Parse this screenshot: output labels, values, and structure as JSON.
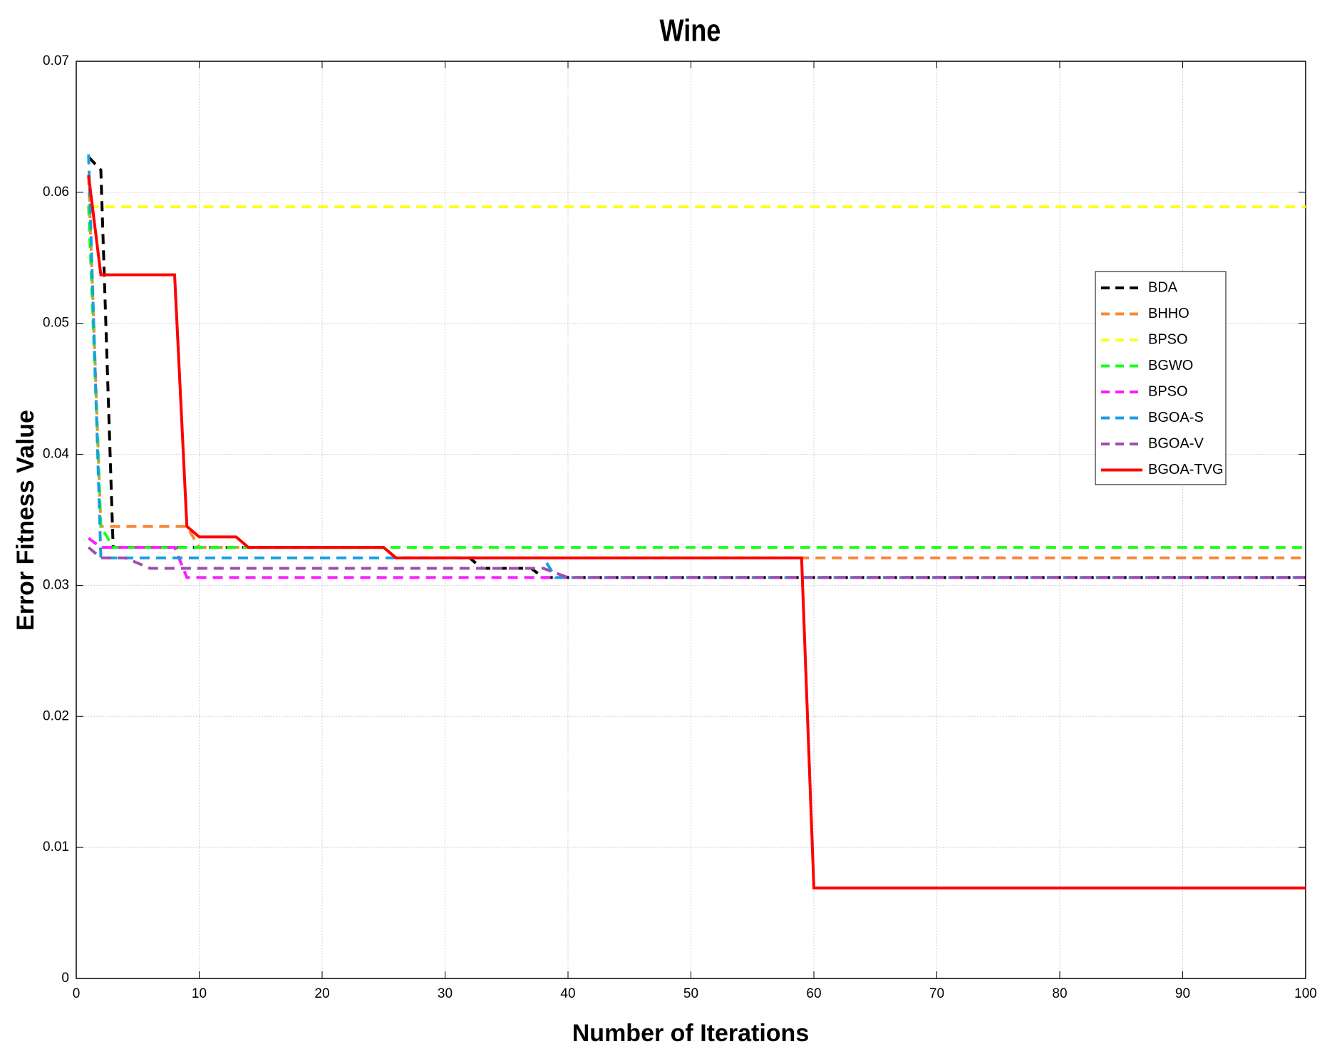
{
  "chart_data": {
    "type": "line",
    "title": "Wine",
    "x_label": "Number of Iterations",
    "y_label": "Error Fitness Value",
    "xlim": [
      0,
      100
    ],
    "xticks": [
      0,
      10,
      20,
      30,
      40,
      50,
      60,
      70,
      80,
      90,
      100
    ],
    "ylim": [
      0,
      0.07
    ],
    "yticks": [
      0,
      0.01,
      0.02,
      0.03,
      0.04,
      0.05,
      0.06,
      0.07
    ],
    "grid": true,
    "legend": "right",
    "series": [
      {
        "name": "BDA",
        "color": "#000000",
        "style": "dashed",
        "x": [
          1,
          2,
          3,
          25,
          26,
          32,
          33,
          37,
          38,
          100
        ],
        "values": [
          0.0627,
          0.0617,
          0.0329,
          0.0329,
          0.0321,
          0.0321,
          0.0313,
          0.0313,
          0.0306,
          0.0306
        ]
      },
      {
        "name": "BHHO",
        "color": "#f5883a",
        "style": "dashed",
        "x": [
          1,
          2,
          9,
          10,
          25,
          26,
          100
        ],
        "values": [
          0.0613,
          0.0345,
          0.0345,
          0.0329,
          0.0329,
          0.0321,
          0.0321
        ]
      },
      {
        "name": "BPSO",
        "color": "#ffff1a",
        "style": "dashed",
        "x": [
          1,
          100
        ],
        "values": [
          0.0589,
          0.0589
        ]
      },
      {
        "name": "BGWO",
        "color": "#1aff1a",
        "style": "dashed",
        "x": [
          1,
          2,
          3,
          100
        ],
        "values": [
          0.059,
          0.0345,
          0.0329,
          0.0329
        ]
      },
      {
        "name": "BPSO",
        "color": "#ff1aff",
        "style": "dashed",
        "x": [
          1,
          2,
          8,
          9,
          100
        ],
        "values": [
          0.0336,
          0.0329,
          0.0329,
          0.0306,
          0.0306
        ]
      },
      {
        "name": "BGOA-S",
        "color": "#1a9fe0",
        "style": "dashed",
        "x": [
          1,
          2,
          38,
          39,
          100
        ],
        "values": [
          0.0629,
          0.0321,
          0.0321,
          0.0306,
          0.0306
        ]
      },
      {
        "name": "BGOA-V",
        "color": "#9b4fb0",
        "style": "dashed",
        "x": [
          1,
          2,
          4,
          6,
          38,
          40,
          100
        ],
        "values": [
          0.0329,
          0.0321,
          0.0321,
          0.0313,
          0.0313,
          0.0306,
          0.0306
        ]
      },
      {
        "name": "BGOA-TVG",
        "color": "#ff0000",
        "style": "solid",
        "x": [
          1,
          2,
          8,
          9,
          10,
          13,
          14,
          25,
          26,
          59,
          60,
          100
        ],
        "values": [
          0.0613,
          0.0537,
          0.0537,
          0.0345,
          0.0337,
          0.0337,
          0.0329,
          0.0329,
          0.0321,
          0.0321,
          0.0069,
          0.0069
        ]
      }
    ]
  }
}
